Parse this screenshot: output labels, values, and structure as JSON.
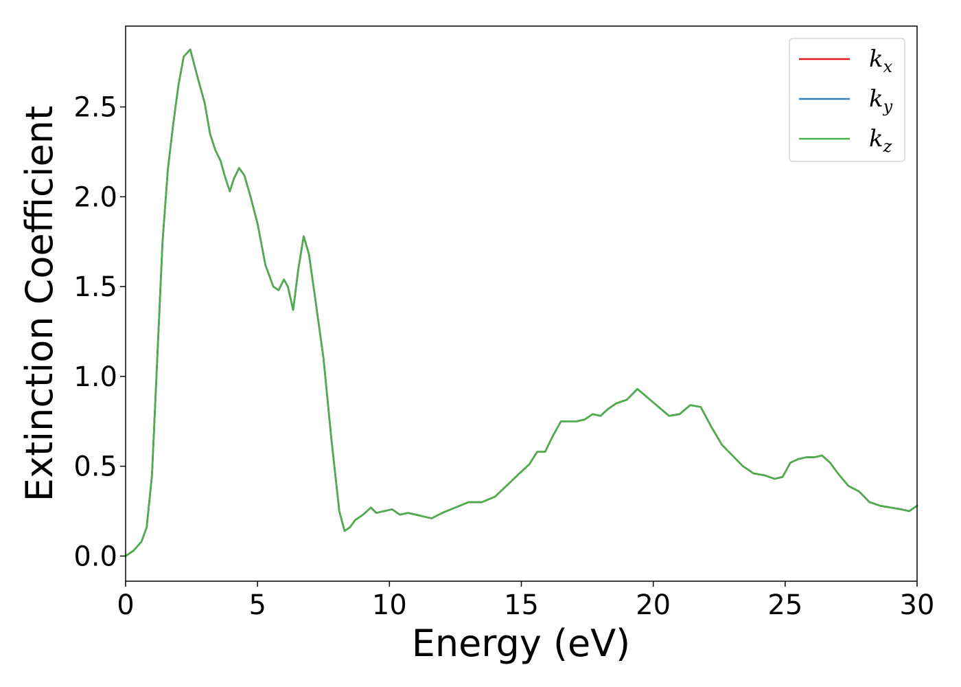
{
  "chart_data": {
    "type": "line",
    "title": "",
    "xlabel": "Energy (eV)",
    "ylabel": "Extinction Coefficient",
    "xlim": [
      0,
      30
    ],
    "ylim": [
      -0.14,
      2.95
    ],
    "xticks": [
      0,
      5,
      10,
      15,
      20,
      25,
      30
    ],
    "xtick_labels": [
      "0",
      "5",
      "10",
      "15",
      "20",
      "25",
      "30"
    ],
    "yticks": [
      0.0,
      0.5,
      1.0,
      1.5,
      2.0,
      2.5
    ],
    "ytick_labels": [
      "0.0",
      "0.5",
      "1.0",
      "1.5",
      "2.0",
      "2.5"
    ],
    "grid": false,
    "legend": "top-right",
    "series": [
      {
        "name": "k_x",
        "label_base": "k",
        "label_sub": "x",
        "color": "#e41a1c",
        "x": [
          0,
          0.3,
          0.6,
          0.8,
          1.0,
          1.2,
          1.4,
          1.6,
          1.8,
          2.0,
          2.2,
          2.45,
          2.7,
          3.0,
          3.2,
          3.4,
          3.6,
          3.75,
          3.95,
          4.1,
          4.3,
          4.5,
          4.7,
          5.0,
          5.3,
          5.6,
          5.8,
          6.0,
          6.15,
          6.35,
          6.55,
          6.75,
          6.95,
          7.2,
          7.5,
          7.8,
          8.1,
          8.3,
          8.5,
          8.7,
          9.0,
          9.3,
          9.5,
          9.8,
          10.1,
          10.4,
          10.7,
          11.0,
          11.3,
          11.6,
          12.0,
          12.5,
          13.0,
          13.5,
          14.0,
          14.5,
          15.0,
          15.3,
          15.6,
          15.9,
          16.2,
          16.5,
          16.8,
          17.1,
          17.4,
          17.7,
          18.0,
          18.3,
          18.6,
          19.0,
          19.4,
          19.8,
          20.2,
          20.6,
          21.0,
          21.4,
          21.8,
          22.2,
          22.6,
          23.0,
          23.4,
          23.8,
          24.2,
          24.6,
          24.9,
          25.2,
          25.5,
          25.8,
          26.1,
          26.4,
          26.7,
          27.0,
          27.4,
          27.8,
          28.2,
          28.6,
          29.0,
          29.4,
          29.7,
          30.0
        ],
        "y": [
          0.0,
          0.03,
          0.08,
          0.16,
          0.45,
          1.1,
          1.75,
          2.15,
          2.4,
          2.62,
          2.78,
          2.82,
          2.68,
          2.52,
          2.35,
          2.26,
          2.2,
          2.12,
          2.03,
          2.1,
          2.16,
          2.12,
          2.02,
          1.85,
          1.62,
          1.5,
          1.48,
          1.54,
          1.5,
          1.37,
          1.6,
          1.78,
          1.68,
          1.42,
          1.1,
          0.65,
          0.25,
          0.14,
          0.16,
          0.2,
          0.23,
          0.27,
          0.24,
          0.25,
          0.26,
          0.23,
          0.24,
          0.23,
          0.22,
          0.21,
          0.24,
          0.27,
          0.3,
          0.3,
          0.33,
          0.4,
          0.47,
          0.51,
          0.58,
          0.58,
          0.67,
          0.75,
          0.75,
          0.75,
          0.76,
          0.79,
          0.78,
          0.82,
          0.85,
          0.87,
          0.93,
          0.88,
          0.83,
          0.78,
          0.79,
          0.84,
          0.83,
          0.72,
          0.62,
          0.56,
          0.5,
          0.46,
          0.45,
          0.43,
          0.44,
          0.52,
          0.54,
          0.55,
          0.55,
          0.56,
          0.52,
          0.46,
          0.39,
          0.36,
          0.3,
          0.28,
          0.27,
          0.26,
          0.25,
          0.28
        ]
      },
      {
        "name": "k_y",
        "label_base": "k",
        "label_sub": "y",
        "color": "#377eb8",
        "x": [
          0,
          0.3,
          0.6,
          0.8,
          1.0,
          1.2,
          1.4,
          1.6,
          1.8,
          2.0,
          2.2,
          2.45,
          2.7,
          3.0,
          3.2,
          3.4,
          3.6,
          3.75,
          3.95,
          4.1,
          4.3,
          4.5,
          4.7,
          5.0,
          5.3,
          5.6,
          5.8,
          6.0,
          6.15,
          6.35,
          6.55,
          6.75,
          6.95,
          7.2,
          7.5,
          7.8,
          8.1,
          8.3,
          8.5,
          8.7,
          9.0,
          9.3,
          9.5,
          9.8,
          10.1,
          10.4,
          10.7,
          11.0,
          11.3,
          11.6,
          12.0,
          12.5,
          13.0,
          13.5,
          14.0,
          14.5,
          15.0,
          15.3,
          15.6,
          15.9,
          16.2,
          16.5,
          16.8,
          17.1,
          17.4,
          17.7,
          18.0,
          18.3,
          18.6,
          19.0,
          19.4,
          19.8,
          20.2,
          20.6,
          21.0,
          21.4,
          21.8,
          22.2,
          22.6,
          23.0,
          23.4,
          23.8,
          24.2,
          24.6,
          24.9,
          25.2,
          25.5,
          25.8,
          26.1,
          26.4,
          26.7,
          27.0,
          27.4,
          27.8,
          28.2,
          28.6,
          29.0,
          29.4,
          29.7,
          30.0
        ],
        "y": [
          0.0,
          0.03,
          0.08,
          0.16,
          0.45,
          1.1,
          1.75,
          2.15,
          2.4,
          2.62,
          2.78,
          2.82,
          2.68,
          2.52,
          2.35,
          2.26,
          2.2,
          2.12,
          2.03,
          2.1,
          2.16,
          2.12,
          2.02,
          1.85,
          1.62,
          1.5,
          1.48,
          1.54,
          1.5,
          1.37,
          1.6,
          1.78,
          1.68,
          1.42,
          1.1,
          0.65,
          0.25,
          0.14,
          0.16,
          0.2,
          0.23,
          0.27,
          0.24,
          0.25,
          0.26,
          0.23,
          0.24,
          0.23,
          0.22,
          0.21,
          0.24,
          0.27,
          0.3,
          0.3,
          0.33,
          0.4,
          0.47,
          0.51,
          0.58,
          0.58,
          0.67,
          0.75,
          0.75,
          0.75,
          0.76,
          0.79,
          0.78,
          0.82,
          0.85,
          0.87,
          0.93,
          0.88,
          0.83,
          0.78,
          0.79,
          0.84,
          0.83,
          0.72,
          0.62,
          0.56,
          0.5,
          0.46,
          0.45,
          0.43,
          0.44,
          0.52,
          0.54,
          0.55,
          0.55,
          0.56,
          0.52,
          0.46,
          0.39,
          0.36,
          0.3,
          0.28,
          0.27,
          0.26,
          0.25,
          0.28
        ]
      },
      {
        "name": "k_z",
        "label_base": "k",
        "label_sub": "z",
        "color": "#4daf4a",
        "x": [
          0,
          0.3,
          0.6,
          0.8,
          1.0,
          1.2,
          1.4,
          1.6,
          1.8,
          2.0,
          2.2,
          2.45,
          2.7,
          3.0,
          3.2,
          3.4,
          3.6,
          3.75,
          3.95,
          4.1,
          4.3,
          4.5,
          4.7,
          5.0,
          5.3,
          5.6,
          5.8,
          6.0,
          6.15,
          6.35,
          6.55,
          6.75,
          6.95,
          7.2,
          7.5,
          7.8,
          8.1,
          8.3,
          8.5,
          8.7,
          9.0,
          9.3,
          9.5,
          9.8,
          10.1,
          10.4,
          10.7,
          11.0,
          11.3,
          11.6,
          12.0,
          12.5,
          13.0,
          13.5,
          14.0,
          14.5,
          15.0,
          15.3,
          15.6,
          15.9,
          16.2,
          16.5,
          16.8,
          17.1,
          17.4,
          17.7,
          18.0,
          18.3,
          18.6,
          19.0,
          19.4,
          19.8,
          20.2,
          20.6,
          21.0,
          21.4,
          21.8,
          22.2,
          22.6,
          23.0,
          23.4,
          23.8,
          24.2,
          24.6,
          24.9,
          25.2,
          25.5,
          25.8,
          26.1,
          26.4,
          26.7,
          27.0,
          27.4,
          27.8,
          28.2,
          28.6,
          29.0,
          29.4,
          29.7,
          30.0
        ],
        "y": [
          0.0,
          0.03,
          0.08,
          0.16,
          0.45,
          1.1,
          1.75,
          2.15,
          2.4,
          2.62,
          2.78,
          2.82,
          2.68,
          2.52,
          2.35,
          2.26,
          2.2,
          2.12,
          2.03,
          2.1,
          2.16,
          2.12,
          2.02,
          1.85,
          1.62,
          1.5,
          1.48,
          1.54,
          1.5,
          1.37,
          1.6,
          1.78,
          1.68,
          1.42,
          1.1,
          0.65,
          0.25,
          0.14,
          0.16,
          0.2,
          0.23,
          0.27,
          0.24,
          0.25,
          0.26,
          0.23,
          0.24,
          0.23,
          0.22,
          0.21,
          0.24,
          0.27,
          0.3,
          0.3,
          0.33,
          0.4,
          0.47,
          0.51,
          0.58,
          0.58,
          0.67,
          0.75,
          0.75,
          0.75,
          0.76,
          0.79,
          0.78,
          0.82,
          0.85,
          0.87,
          0.93,
          0.88,
          0.83,
          0.78,
          0.79,
          0.84,
          0.83,
          0.72,
          0.62,
          0.56,
          0.5,
          0.46,
          0.45,
          0.43,
          0.44,
          0.52,
          0.54,
          0.55,
          0.55,
          0.56,
          0.52,
          0.46,
          0.39,
          0.36,
          0.3,
          0.28,
          0.27,
          0.26,
          0.25,
          0.28
        ]
      }
    ]
  }
}
